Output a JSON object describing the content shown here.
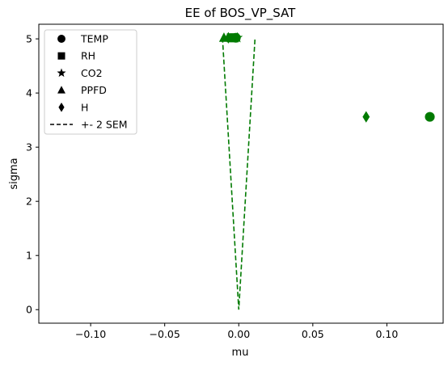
{
  "chart_data": {
    "type": "scatter",
    "title": "EE of BOS_VP_SAT",
    "xlabel": "mu",
    "ylabel": "sigma",
    "xlim": [
      -0.135,
      0.138
    ],
    "ylim": [
      -0.25,
      5.27
    ],
    "x_ticks": [
      -0.1,
      -0.05,
      0.0,
      0.05,
      0.1
    ],
    "x_tick_labels": [
      "−0.10",
      "−0.05",
      "0.00",
      "0.05",
      "0.10"
    ],
    "y_ticks": [
      0,
      1,
      2,
      3,
      4,
      5
    ],
    "y_tick_labels": [
      "0",
      "1",
      "2",
      "3",
      "4",
      "5"
    ],
    "grid": false,
    "legend_position": "top-left",
    "marker_color": "#007a00",
    "series": [
      {
        "name": "TEMP",
        "marker": "circle",
        "points": [
          {
            "x": 0.129,
            "y": 3.56
          },
          {
            "x": -0.002,
            "y": 5.02
          }
        ]
      },
      {
        "name": "RH",
        "marker": "square",
        "points": [
          {
            "x": -0.005,
            "y": 5.02
          },
          {
            "x": -0.003,
            "y": 5.02
          }
        ]
      },
      {
        "name": "CO2",
        "marker": "star",
        "points": [
          {
            "x": -0.001,
            "y": 5.02
          }
        ]
      },
      {
        "name": "PPFD",
        "marker": "triangle",
        "points": [
          {
            "x": -0.01,
            "y": 5.02
          }
        ]
      },
      {
        "name": "H",
        "marker": "diamond",
        "points": [
          {
            "x": 0.086,
            "y": 3.56
          },
          {
            "x": -0.007,
            "y": 5.02
          }
        ]
      }
    ],
    "sem_line": {
      "name": "+- 2 SEM",
      "style": "dashed",
      "points": [
        {
          "x": -0.011,
          "y": 5.02
        },
        {
          "x": 0.0,
          "y": 0.0
        },
        {
          "x": 0.011,
          "y": 5.02
        }
      ]
    },
    "legend_line_color": "#000000"
  }
}
